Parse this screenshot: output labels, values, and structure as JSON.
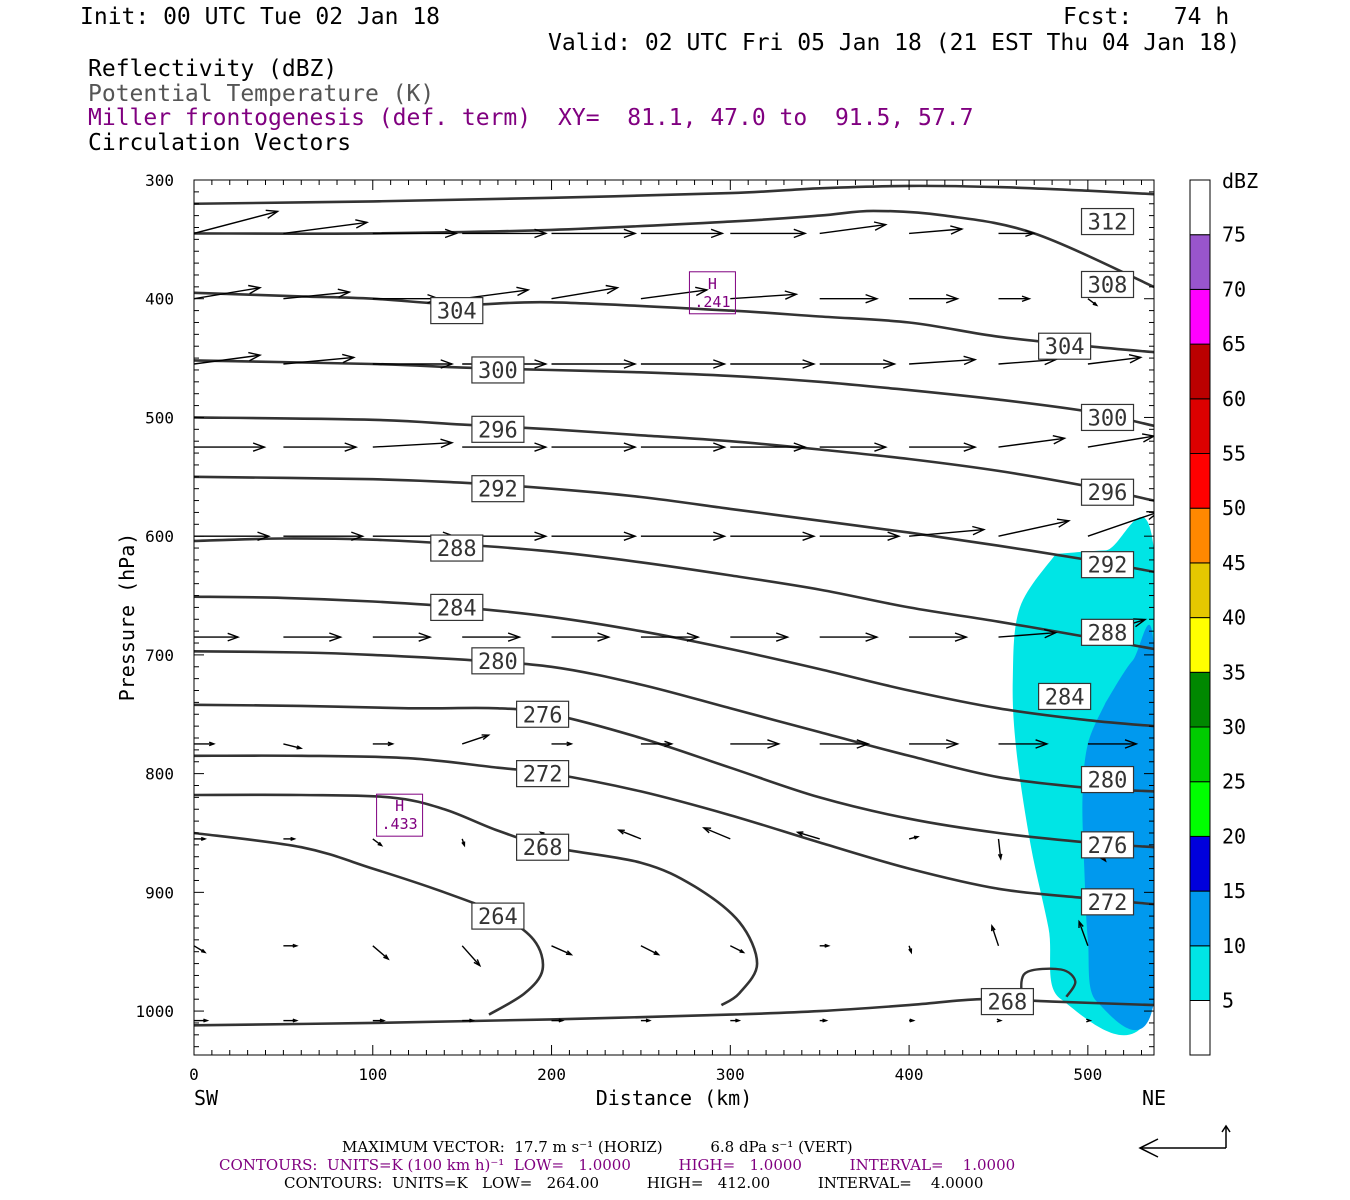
{
  "header": {
    "init": "Init: 00 UTC Tue 02 Jan 18",
    "fcst": "Fcst:   74 h",
    "valid": "Valid: 02 UTC Fri 05 Jan 18 (21 EST Thu 04 Jan 18)",
    "field1": "Reflectivity (dBZ)",
    "field2": "Potential Temperature (K)",
    "field3": "Miller frontogenesis (def. term)",
    "xy": "XY=  81.1, 47.0 to  91.5, 57.7",
    "field4": "Circulation Vectors"
  },
  "footer": {
    "line1": "MAXIMUM VECTOR:  17.7 m s⁻¹ (HORIZ)          6.8 dPa s⁻¹ (VERT)",
    "line2": "CONTOURS:  UNITS=K (100 km h)⁻¹  LOW=   1.0000          HIGH=   1.0000          INTERVAL=    1.0000",
    "line3": "CONTOURS:  UNITS=K   LOW=   264.00          HIGH=   412.00          INTERVAL=    4.0000"
  },
  "colors": {
    "purple": "#800080",
    "grey_text": "#555555",
    "contour": "#333333"
  },
  "chart_data": {
    "type": "cross-section",
    "xlabel": "Distance (km)",
    "ylabel": "Pressure (hPa)",
    "xlim": [
      0,
      537
    ],
    "ylim": [
      1037,
      300
    ],
    "x_ticks": [
      "0",
      "100",
      "200",
      "300",
      "400",
      "500"
    ],
    "y_ticks": [
      "300",
      "400",
      "500",
      "600",
      "700",
      "800",
      "900",
      "1000"
    ],
    "x_end_labels": {
      "left": "SW",
      "right": "NE"
    },
    "colorbar": {
      "unit": "dBZ",
      "levels": [
        "5",
        "10",
        "15",
        "20",
        "25",
        "30",
        "35",
        "40",
        "45",
        "50",
        "55",
        "60",
        "65",
        "70",
        "75"
      ],
      "colors": [
        "#00e5e5",
        "#0099ee",
        "#0000dd",
        "#00ff00",
        "#00cc00",
        "#008800",
        "#ffff00",
        "#e5c800",
        "#ff8800",
        "#ff0000",
        "#dd0000",
        "#bb0000",
        "#ff00ff",
        "#9955cc",
        "#ffffff"
      ]
    },
    "theta_contours": [
      {
        "label": "312",
        "label_at": [
          511,
          335
        ],
        "points": [
          [
            0,
            320
          ],
          [
            100,
            318
          ],
          [
            200,
            315
          ],
          [
            300,
            311
          ],
          [
            350,
            307
          ],
          [
            400,
            305
          ],
          [
            450,
            306
          ],
          [
            500,
            309
          ],
          [
            537,
            312
          ]
        ]
      },
      {
        "label": "308",
        "label_at": [
          511,
          388
        ],
        "points": [
          [
            0,
            345
          ],
          [
            100,
            345
          ],
          [
            200,
            342
          ],
          [
            300,
            335
          ],
          [
            350,
            330
          ],
          [
            380,
            326
          ],
          [
            420,
            330
          ],
          [
            470,
            345
          ],
          [
            537,
            390
          ]
        ]
      },
      {
        "label": "304",
        "label_at": [
          147,
          410
        ],
        "points": [
          [
            0,
            395
          ],
          [
            60,
            398
          ],
          [
            100,
            400
          ],
          [
            150,
            405
          ],
          [
            200,
            403
          ],
          [
            300,
            410
          ],
          [
            350,
            415
          ],
          [
            400,
            420
          ],
          [
            450,
            432
          ],
          [
            500,
            440
          ],
          [
            537,
            445
          ]
        ]
      },
      {
        "label": "304",
        "label_at": [
          487,
          440
        ],
        "points": []
      },
      {
        "label": "300",
        "label_at": [
          170,
          460
        ],
        "points": [
          [
            0,
            452
          ],
          [
            100,
            455
          ],
          [
            150,
            458
          ],
          [
            200,
            460
          ],
          [
            250,
            462
          ],
          [
            300,
            465
          ],
          [
            350,
            470
          ],
          [
            400,
            477
          ],
          [
            450,
            485
          ],
          [
            500,
            495
          ],
          [
            537,
            507
          ]
        ]
      },
      {
        "label": "300",
        "label_at": [
          511,
          500
        ],
        "points": []
      },
      {
        "label": "296",
        "label_at": [
          170,
          510
        ],
        "points": [
          [
            0,
            500
          ],
          [
            100,
            502
          ],
          [
            150,
            506
          ],
          [
            200,
            510
          ],
          [
            250,
            515
          ],
          [
            300,
            520
          ],
          [
            350,
            527
          ],
          [
            400,
            535
          ],
          [
            450,
            545
          ],
          [
            500,
            558
          ],
          [
            537,
            570
          ]
        ]
      },
      {
        "label": "296",
        "label_at": [
          511,
          563
        ],
        "points": []
      },
      {
        "label": "292",
        "label_at": [
          170,
          560
        ],
        "points": [
          [
            0,
            550
          ],
          [
            100,
            552
          ],
          [
            150,
            555
          ],
          [
            200,
            560
          ],
          [
            250,
            567
          ],
          [
            300,
            577
          ],
          [
            350,
            587
          ],
          [
            400,
            597
          ],
          [
            450,
            608
          ],
          [
            500,
            620
          ],
          [
            537,
            630
          ]
        ]
      },
      {
        "label": "292",
        "label_at": [
          511,
          624
        ],
        "points": []
      },
      {
        "label": "288",
        "label_at": [
          147,
          610
        ],
        "points": [
          [
            0,
            604
          ],
          [
            50,
            602
          ],
          [
            100,
            603
          ],
          [
            150,
            607
          ],
          [
            200,
            613
          ],
          [
            250,
            622
          ],
          [
            300,
            633
          ],
          [
            350,
            645
          ],
          [
            400,
            660
          ],
          [
            450,
            672
          ],
          [
            500,
            685
          ],
          [
            537,
            695
          ]
        ]
      },
      {
        "label": "288",
        "label_at": [
          511,
          681
        ],
        "points": []
      },
      {
        "label": "284",
        "label_at": [
          147,
          660
        ],
        "points": [
          [
            0,
            651
          ],
          [
            50,
            652
          ],
          [
            100,
            655
          ],
          [
            150,
            660
          ],
          [
            200,
            668
          ],
          [
            250,
            680
          ],
          [
            300,
            695
          ],
          [
            350,
            712
          ],
          [
            400,
            730
          ],
          [
            450,
            745
          ],
          [
            500,
            755
          ],
          [
            537,
            760
          ]
        ]
      },
      {
        "label": "284",
        "label_at": [
          487,
          735
        ],
        "points": []
      },
      {
        "label": "280",
        "label_at": [
          170,
          705
        ],
        "points": [
          [
            0,
            697
          ],
          [
            60,
            698
          ],
          [
            100,
            700
          ],
          [
            150,
            704
          ],
          [
            200,
            710
          ],
          [
            250,
            725
          ],
          [
            300,
            745
          ],
          [
            350,
            765
          ],
          [
            400,
            785
          ],
          [
            450,
            803
          ],
          [
            500,
            812
          ],
          [
            537,
            815
          ]
        ]
      },
      {
        "label": "280",
        "label_at": [
          511,
          805
        ],
        "points": []
      },
      {
        "label": "276",
        "label_at": [
          195,
          750
        ],
        "points": [
          [
            0,
            742
          ],
          [
            60,
            743
          ],
          [
            120,
            745
          ],
          [
            170,
            745
          ],
          [
            200,
            750
          ],
          [
            250,
            770
          ],
          [
            300,
            795
          ],
          [
            350,
            820
          ],
          [
            400,
            838
          ],
          [
            450,
            850
          ],
          [
            500,
            858
          ],
          [
            537,
            862
          ]
        ]
      },
      {
        "label": "276",
        "label_at": [
          511,
          860
        ],
        "points": []
      },
      {
        "label": "272",
        "label_at": [
          195,
          800
        ],
        "points": [
          [
            0,
            785
          ],
          [
            60,
            785
          ],
          [
            120,
            787
          ],
          [
            170,
            795
          ],
          [
            200,
            800
          ],
          [
            250,
            815
          ],
          [
            300,
            835
          ],
          [
            350,
            858
          ],
          [
            400,
            880
          ],
          [
            450,
            897
          ],
          [
            500,
            905
          ],
          [
            537,
            910
          ]
        ]
      },
      {
        "label": "272",
        "label_at": [
          511,
          908
        ],
        "points": []
      },
      {
        "label": "268",
        "label_at": [
          195,
          862
        ],
        "points": [
          [
            0,
            818
          ],
          [
            60,
            818
          ],
          [
            110,
            820
          ],
          [
            140,
            830
          ],
          [
            170,
            848
          ],
          [
            200,
            862
          ],
          [
            250,
            875
          ],
          [
            280,
            895
          ],
          [
            305,
            925
          ],
          [
            315,
            960
          ],
          [
            305,
            985
          ],
          [
            295,
            995
          ]
        ]
      },
      {
        "label": "268",
        "label_at": [
          455,
          992
        ],
        "points": []
      },
      {
        "label": "264",
        "label_at": [
          170,
          920
        ],
        "points": [
          [
            0,
            850
          ],
          [
            60,
            862
          ],
          [
            100,
            880
          ],
          [
            140,
            900
          ],
          [
            170,
            918
          ],
          [
            190,
            940
          ],
          [
            195,
            965
          ],
          [
            185,
            985
          ],
          [
            165,
            1003
          ]
        ]
      },
      {
        "label": "",
        "label_at": null,
        "points": [
          [
            0,
            1012
          ],
          [
            100,
            1010
          ],
          [
            200,
            1007
          ],
          [
            300,
            1003
          ],
          [
            350,
            1000
          ],
          [
            400,
            995
          ],
          [
            440,
            990
          ],
          [
            480,
            992
          ],
          [
            537,
            995
          ]
        ]
      }
    ],
    "frontogenesis_maxima": [
      {
        "label": "H",
        "value": ".241",
        "x": 290,
        "p": 395
      },
      {
        "label": "H",
        "value": ".433",
        "x": 115,
        "p": 835
      }
    ]
  }
}
